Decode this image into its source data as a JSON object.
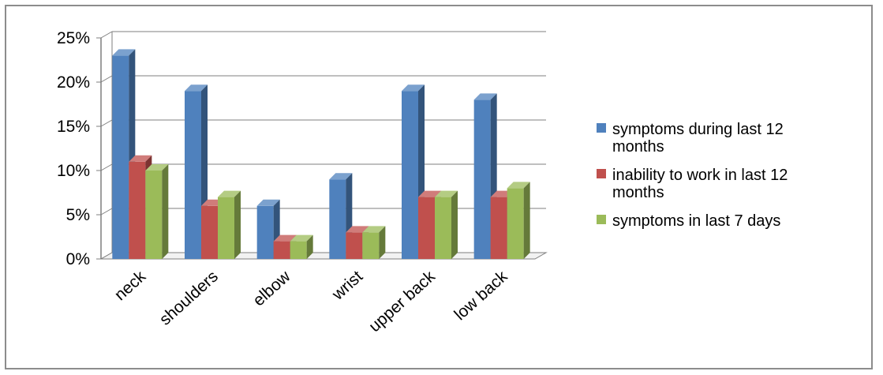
{
  "chart_data": {
    "type": "bar",
    "title": "",
    "xlabel": "",
    "ylabel": "",
    "ylim": [
      0,
      25
    ],
    "yticks": [
      "0%",
      "5%",
      "10%",
      "15%",
      "20%",
      "25%"
    ],
    "categories": [
      "neck",
      "shoulders",
      "elbow",
      "wrist",
      "upper back",
      "low back"
    ],
    "series": [
      {
        "name": "symptoms during last 12 months",
        "legend_lines": [
          "symptoms during last 12",
          "months"
        ],
        "color": "#4f81bd",
        "values": [
          23,
          19,
          6,
          9,
          19,
          18
        ]
      },
      {
        "name": "inability to work in last 12 months",
        "legend_lines": [
          "inability to work in last 12",
          "months"
        ],
        "color": "#c0504d",
        "values": [
          11,
          6,
          2,
          3,
          7,
          7
        ]
      },
      {
        "name": "symptoms in last 7 days",
        "legend_lines": [
          "symptoms in last 7 days"
        ],
        "color": "#9bbb59",
        "values": [
          10,
          7,
          2,
          3,
          7,
          8
        ]
      }
    ],
    "grid": true,
    "legend": "right",
    "style": "3d-clustered-column"
  }
}
